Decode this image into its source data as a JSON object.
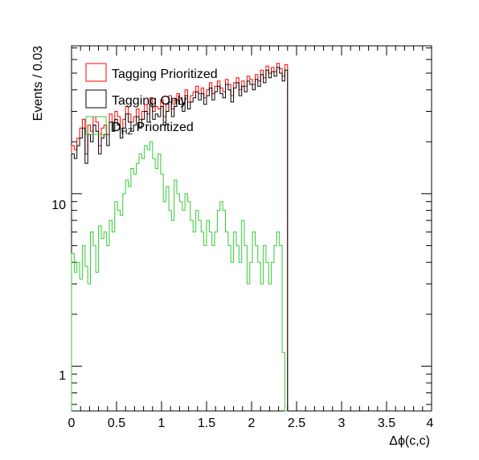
{
  "chart_data": {
    "type": "histogram",
    "xlabel": "Δϕ(c,c)",
    "ylabel": "Events / 0.03",
    "xlim": [
      0,
      4
    ],
    "ylim": [
      0.55,
      72
    ],
    "yscale": "log",
    "bin_width": 0.03,
    "x_ticks": [
      "0",
      "0.5",
      "1",
      "1.5",
      "2",
      "2.5",
      "3",
      "3.5",
      "4"
    ],
    "y_ticks": [
      "1",
      "10"
    ],
    "legend": {
      "position": "top-left",
      "entries": [
        {
          "label": "Tagging Prioritized",
          "color": "#ff0000"
        },
        {
          "label": "Tagging Only",
          "color": "#000000"
        },
        {
          "label_main": "D",
          "label_sub": "HZ",
          "label_rest": " Prioritized",
          "color": "#33cc33"
        }
      ]
    },
    "series": [
      {
        "name": "Tagging Prioritized",
        "color": "#ff0000",
        "values": [
          19,
          18,
          21,
          24,
          27,
          17,
          25,
          23,
          28,
          26,
          19,
          24,
          25,
          22,
          29,
          26,
          30,
          28,
          24,
          27,
          32,
          29,
          26,
          28,
          31,
          27,
          30,
          33,
          29,
          36,
          30,
          32,
          31,
          35,
          28,
          33,
          37,
          31,
          35,
          38,
          36,
          33,
          40,
          34,
          37,
          39,
          42,
          38,
          41,
          36,
          40,
          44,
          38,
          42,
          45,
          41,
          39,
          46,
          43,
          37,
          44,
          47,
          40,
          45,
          42,
          48,
          46,
          43,
          49,
          45,
          52,
          47,
          55,
          50,
          54,
          51,
          57,
          53,
          48,
          56
        ]
      },
      {
        "name": "Tagging Only",
        "color": "#000000",
        "values": [
          17,
          16,
          19,
          21,
          24,
          15,
          22,
          20,
          25,
          23,
          17,
          21,
          22,
          19,
          26,
          23,
          27,
          25,
          21,
          24,
          29,
          26,
          23,
          25,
          28,
          24,
          27,
          30,
          26,
          33,
          27,
          29,
          28,
          32,
          25,
          30,
          34,
          28,
          32,
          35,
          33,
          30,
          37,
          31,
          34,
          36,
          39,
          35,
          38,
          33,
          37,
          41,
          35,
          39,
          42,
          38,
          36,
          43,
          40,
          34,
          41,
          44,
          37,
          42,
          39,
          45,
          43,
          40,
          46,
          42,
          49,
          44,
          52,
          47,
          51,
          48,
          54,
          50,
          45,
          52
        ]
      },
      {
        "name": "D_HZ Prioritized",
        "color": "#33cc33",
        "values": [
          4.5,
          3.5,
          4,
          3.2,
          5,
          3.8,
          3,
          6,
          5,
          3.5,
          6.5,
          5.5,
          6,
          5,
          7,
          6,
          9,
          8,
          7.5,
          10,
          12,
          11,
          14,
          13,
          15,
          17,
          16,
          19,
          18,
          20,
          16,
          14,
          17,
          13,
          9,
          11,
          8,
          7,
          12,
          10,
          9,
          8,
          10,
          9,
          7,
          6,
          8,
          7,
          6,
          5,
          7,
          6,
          5,
          6,
          8,
          9,
          8,
          6,
          5,
          4,
          6,
          5,
          4,
          7,
          5,
          3,
          4,
          6,
          5,
          4,
          3,
          5,
          4,
          3,
          4,
          5,
          6,
          5,
          1.2,
          0.5
        ]
      }
    ]
  }
}
